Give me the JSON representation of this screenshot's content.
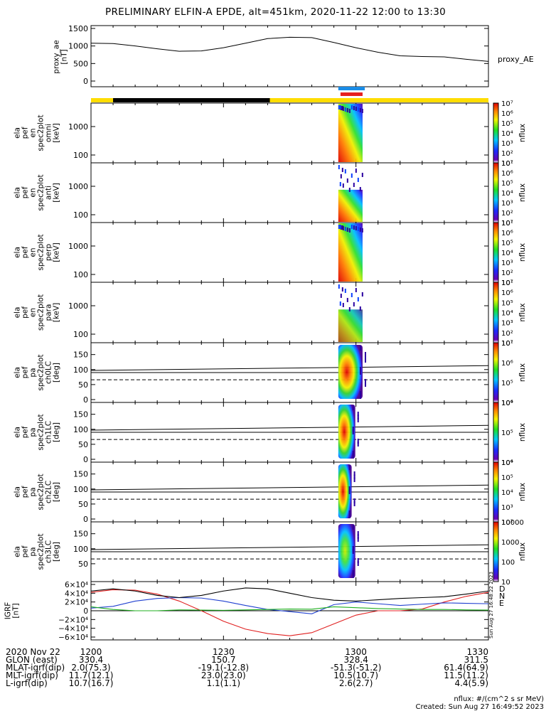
{
  "title": "PRELIMINARY ELFIN-A EPDE, alt=451km, 2020-11-22 12:00 to 13:30",
  "ae_panel": {
    "ylabel": [
      "proxy_ae",
      "[nT]"
    ],
    "legend": "proxy_AE",
    "yticks": [
      "1500",
      "1000",
      "500",
      "0"
    ]
  },
  "spec_panels": [
    {
      "ylabel": [
        "ela",
        "pef",
        "en",
        "spec2plot",
        "omni",
        "[keV]"
      ],
      "yticks": [
        "1000",
        "100"
      ],
      "cbar_ticks": [
        "10⁷",
        "10⁶",
        "10⁵",
        "10⁴",
        "10³",
        "10²",
        "10¹"
      ],
      "cbar_label": "nflux"
    },
    {
      "ylabel": [
        "ela",
        "pef",
        "en",
        "spec2plot",
        "anti",
        "[keV]"
      ],
      "yticks": [
        "1000",
        "100"
      ],
      "cbar_ticks": [
        "10⁷",
        "10⁶",
        "10⁵",
        "10⁴",
        "10³",
        "10²",
        "10¹"
      ],
      "cbar_label": "nflux"
    },
    {
      "ylabel": [
        "ela",
        "pef",
        "en",
        "spec2plot",
        "perp",
        "[keV]"
      ],
      "yticks": [
        "1000",
        "100"
      ],
      "cbar_ticks": [
        "10⁷",
        "10⁶",
        "10⁵",
        "10⁴",
        "10³",
        "10²",
        "10¹"
      ],
      "cbar_label": "nflux"
    },
    {
      "ylabel": [
        "ela",
        "pef",
        "en",
        "spec2plot",
        "para",
        "[keV]"
      ],
      "yticks": [
        "1000",
        "100"
      ],
      "cbar_ticks": [
        "10⁷",
        "10⁶",
        "10⁵",
        "10⁴",
        "10³",
        "10²",
        "10¹"
      ],
      "cbar_label": "nflux"
    }
  ],
  "pa_panels": [
    {
      "ylabel": [
        "ela",
        "pef",
        "pa",
        "spec2plot",
        "ch0LC",
        "[deg]"
      ],
      "yticks": [
        "150",
        "100",
        "50",
        "0"
      ],
      "cbar_ticks": [
        "10⁷",
        "10⁶",
        "10⁵",
        "10⁴"
      ],
      "cbar_label": "nflux"
    },
    {
      "ylabel": [
        "ela",
        "pef",
        "pa",
        "spec2plot",
        "ch1LC",
        "[deg]"
      ],
      "yticks": [
        "150",
        "100",
        "50",
        "0"
      ],
      "cbar_ticks": [
        "10⁶",
        "10⁵",
        "10⁴"
      ],
      "cbar_label": "nflux"
    },
    {
      "ylabel": [
        "ela",
        "pef",
        "pa",
        "spec2plot",
        "ch2LC",
        "[deg]"
      ],
      "yticks": [
        "150",
        "100",
        "50",
        "0"
      ],
      "cbar_ticks": [
        "10⁶",
        "10⁵",
        "10⁴",
        "10³",
        "10²"
      ],
      "cbar_label": "nflux"
    },
    {
      "ylabel": [
        "ela",
        "pef",
        "pa",
        "spec2plot",
        "ch3LC",
        "[deg]"
      ],
      "yticks": [
        "150",
        "100",
        "50"
      ],
      "cbar_ticks": [
        "10000",
        "1000",
        "100",
        "10"
      ],
      "cbar_label": "nflux"
    }
  ],
  "igrf_panel": {
    "ylabel": [
      "IGRF",
      "[nT]"
    ],
    "yticks": [
      "6×10⁴",
      "4×10⁴",
      "2×10⁴",
      "0",
      "−2×10⁴",
      "−4×10⁴",
      "−6×10⁴"
    ],
    "legend": [
      {
        "label": "D",
        "color": "#e02020"
      },
      {
        "label": "N",
        "color": "#2040d0"
      },
      {
        "label": "E",
        "color": "#20b020"
      }
    ],
    "side_stamp": "Sun Aug 27 16:48:22 2023"
  },
  "axis_table": {
    "rows": [
      {
        "label": "2020 Nov 22",
        "values": [
          "1200",
          "1230",
          "1300",
          "1330"
        ]
      },
      {
        "label": "GLON (east)",
        "values": [
          "330.4",
          "150.7",
          "328.4",
          "311.5"
        ]
      },
      {
        "label": "MLAT-igrf(dip)",
        "values": [
          "2.0(75.3)",
          "-19.1(-12.8)",
          "-51.3(-51.2)",
          "61.4(64.9)"
        ]
      },
      {
        "label": "MLT-igrf(dip)",
        "values": [
          "11.7(12.1)",
          "23.0(23.0)",
          "10.5(10.7)",
          "11.5(11.2)"
        ]
      },
      {
        "label": "L-igrf(dip)",
        "values": [
          "10.7(16.7)",
          "1.1(1.1)",
          "2.6(2.7)",
          "4.4(5.9)"
        ]
      }
    ]
  },
  "footer": {
    "units": "nflux: #/(cm^2 s sr MeV)",
    "created": "Created: Sun Aug 27 16:49:52 2023"
  },
  "colors": {
    "day_bar": "#ffdd00",
    "night_bar": "#000000",
    "science_zone_blue": "#1a8ce6",
    "science_zone_red": "#e62020"
  },
  "chart_data": [
    {
      "type": "line",
      "title": "PRELIMINARY ELFIN-A EPDE, alt=451km, 2020-11-22 12:00 to 13:30",
      "ylabel": "proxy_ae [nT]",
      "ylim": [
        0,
        1500
      ],
      "x_minutes": [
        0,
        5,
        10,
        15,
        20,
        25,
        30,
        35,
        40,
        45,
        50,
        55,
        60,
        65,
        70,
        75,
        80,
        85,
        90
      ],
      "series": [
        {
          "name": "proxy_AE",
          "values": [
            1080,
            1070,
            1000,
            920,
            850,
            860,
            950,
            1080,
            1210,
            1250,
            1240,
            1100,
            950,
            820,
            720,
            700,
            690,
            620,
            560
          ]
        }
      ]
    },
    {
      "type": "line",
      "ylabel": "IGRF [nT]",
      "ylim": [
        -60000,
        60000
      ],
      "x_minutes": [
        0,
        5,
        10,
        15,
        20,
        25,
        30,
        35,
        40,
        45,
        50,
        55,
        60,
        65,
        70,
        75,
        80,
        85,
        90
      ],
      "series": [
        {
          "name": "D",
          "values": [
            42000,
            48000,
            47000,
            38000,
            22000,
            0,
            -24000,
            -42000,
            -52000,
            -57000,
            -50000,
            -30000,
            -10000,
            0,
            0,
            4000,
            20000,
            33000,
            42000
          ]
        },
        {
          "name": "N",
          "values": [
            6000,
            10000,
            22000,
            28000,
            30000,
            29000,
            22000,
            12000,
            3000,
            -2000,
            -7000,
            14000,
            20000,
            16000,
            12000,
            15000,
            18000,
            17000,
            16000
          ]
        },
        {
          "name": "E",
          "values": [
            9000,
            3000,
            0,
            0,
            2000,
            1500,
            1000,
            2000,
            3000,
            4000,
            3500,
            9000,
            7000,
            5000,
            4000,
            3000,
            3000,
            2000,
            1500
          ]
        },
        {
          "values": [
            45000,
            50000,
            45000,
            35000,
            30000,
            35000,
            45000,
            52000,
            50000,
            40000,
            30000,
            24000,
            22000,
            25000,
            28000,
            30000,
            32000,
            38000,
            45000
          ]
        }
      ]
    },
    {
      "type": "heatmap",
      "xlabel": "2020 Nov 22",
      "x_ticks": [
        "1200",
        "1230",
        "1300",
        "1330"
      ],
      "panels": [
        "omni",
        "anti",
        "perp",
        "para",
        "ch0LC",
        "ch1LC",
        "ch2LC",
        "ch3LC"
      ],
      "active_window": [
        "12:55",
        "13:00"
      ]
    }
  ]
}
